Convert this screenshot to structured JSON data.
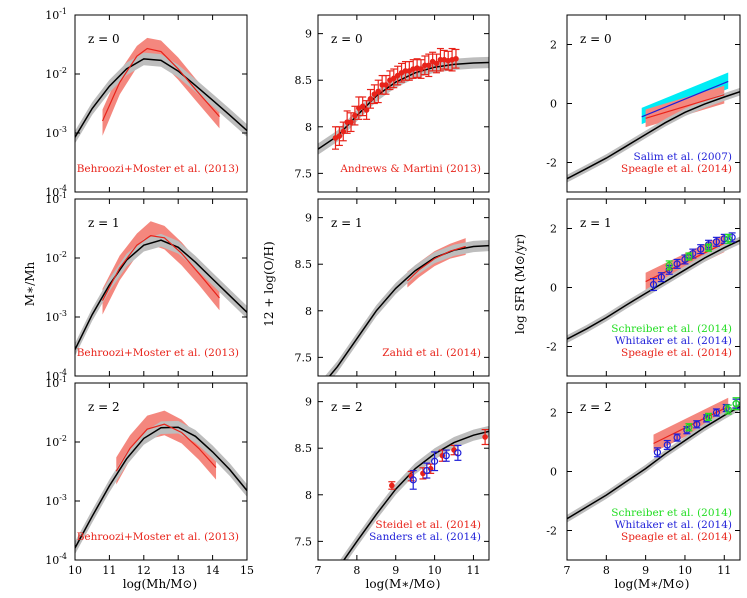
{
  "figure": {
    "columns": [
      {
        "id": "smhm",
        "ylabel": "M∗/Mh",
        "xlabel": "log(Mh/M⊙)",
        "xlim": [
          10,
          15
        ],
        "xticks": [
          10,
          11,
          12,
          13,
          14,
          15
        ],
        "ylog": true,
        "ylim": [
          -4,
          -1
        ],
        "yticks": [
          -4,
          -3,
          -2,
          -1
        ]
      },
      {
        "id": "mzr",
        "ylabel": "12 + log(O/H)",
        "xlabel": "log(M∗/M⊙)",
        "xlim": [
          7,
          11.4
        ],
        "xticks": [
          7,
          8,
          9,
          10,
          11
        ],
        "ylog": false,
        "ylim": [
          7.3,
          9.2
        ],
        "yticks": [
          7.5,
          8.0,
          8.5,
          9.0
        ]
      },
      {
        "id": "sfms",
        "ylabel": "log SFR (M⊙/yr)",
        "xlabel": "log(M∗/M⊙)",
        "xlim": [
          7,
          11.4
        ],
        "xticks": [
          7,
          8,
          9,
          10,
          11
        ],
        "ylog": false,
        "ylim": [
          -3.0,
          3.0
        ],
        "yticks": [
          -2,
          0,
          2
        ]
      }
    ]
  },
  "colors": {
    "red": "#e8231a",
    "red_band": "#f4877e",
    "blue": "#1f1fd8",
    "green": "#22dd22",
    "cyan": "#00ecf5",
    "model": "#000000",
    "model_band": "#bdbdbd"
  },
  "chart_data": [
    {
      "type": "line",
      "panel": "smhm-z0",
      "redshift_label": "z = 0",
      "model": {
        "x": [
          10,
          10.5,
          11,
          11.5,
          12,
          12.5,
          13,
          13.5,
          14,
          14.5,
          15
        ],
        "y": [
          0.00085,
          0.0026,
          0.0062,
          0.0122,
          0.018,
          0.017,
          0.0112,
          0.0064,
          0.0036,
          0.002,
          0.0011
        ]
      },
      "observation": {
        "name": "Behroozi+Moster et al. (2013)",
        "x": [
          10.8,
          11.3,
          11.8,
          12.1,
          12.5,
          13,
          13.5,
          14.2
        ],
        "y": [
          0.0016,
          0.0072,
          0.02,
          0.027,
          0.024,
          0.0122,
          0.0055,
          0.0019
        ],
        "lo": [
          0.0009,
          0.0045,
          0.013,
          0.019,
          0.016,
          0.008,
          0.0036,
          0.0012
        ],
        "hi": [
          0.0025,
          0.011,
          0.03,
          0.041,
          0.037,
          0.019,
          0.0084,
          0.003
        ]
      },
      "legend": [
        "Behroozi+Moster et al. (2013)"
      ]
    },
    {
      "type": "line",
      "panel": "smhm-z1",
      "redshift_label": "z = 1",
      "model": {
        "x": [
          10,
          10.5,
          11,
          11.5,
          12,
          12.5,
          13,
          13.5,
          14,
          14.5,
          15
        ],
        "y": [
          0.00028,
          0.0011,
          0.0035,
          0.0092,
          0.0165,
          0.02,
          0.0152,
          0.0085,
          0.0044,
          0.0023,
          0.0012
        ]
      },
      "observation": {
        "name": "Behroozi+Moster et al. (2013)",
        "x": [
          10.8,
          11.3,
          11.8,
          12.2,
          12.6,
          13.1,
          13.6,
          14.2
        ],
        "y": [
          0.0019,
          0.0068,
          0.0165,
          0.024,
          0.022,
          0.012,
          0.0055,
          0.0021
        ],
        "lo": [
          0.0011,
          0.0042,
          0.011,
          0.017,
          0.014,
          0.0075,
          0.0035,
          0.0013
        ],
        "hi": [
          0.003,
          0.011,
          0.026,
          0.042,
          0.035,
          0.0185,
          0.0085,
          0.0032
        ]
      },
      "legend": [
        "Behroozi+Moster et al. (2013)"
      ]
    },
    {
      "type": "line",
      "panel": "smhm-z2",
      "redshift_label": "z = 2",
      "model": {
        "x": [
          10,
          10.5,
          11,
          11.5,
          12,
          12.5,
          13,
          13.5,
          14,
          14.5,
          15
        ],
        "y": [
          0.00016,
          0.00055,
          0.0018,
          0.0052,
          0.0115,
          0.0175,
          0.0178,
          0.0125,
          0.0068,
          0.0034,
          0.0015
        ]
      },
      "observation": {
        "name": "Behroozi+Moster et al. (2013)",
        "x": [
          11.2,
          11.6,
          12.1,
          12.6,
          13.1,
          13.6,
          14.1
        ],
        "y": [
          0.0032,
          0.0078,
          0.0165,
          0.02,
          0.0145,
          0.0078,
          0.0037
        ],
        "lo": [
          0.0019,
          0.005,
          0.011,
          0.013,
          0.0095,
          0.005,
          0.0023
        ],
        "hi": [
          0.0055,
          0.013,
          0.028,
          0.034,
          0.024,
          0.0125,
          0.006
        ]
      },
      "legend": [
        "Behroozi+Moster et al. (2013)"
      ]
    },
    {
      "type": "line",
      "panel": "mzr-z0",
      "redshift_label": "z = 0",
      "model": {
        "x": [
          7,
          7.5,
          8,
          8.5,
          9,
          9.5,
          10,
          10.5,
          11,
          11.4
        ],
        "y": [
          7.76,
          7.9,
          8.12,
          8.33,
          8.48,
          8.58,
          8.64,
          8.67,
          8.685,
          8.69
        ]
      },
      "points": {
        "name": "Andrews & Martini (2013)",
        "x": [
          7.45,
          7.55,
          7.65,
          7.75,
          7.85,
          7.95,
          8.05,
          8.15,
          8.25,
          8.35,
          8.45,
          8.55,
          8.65,
          8.75,
          8.85,
          8.95,
          9.05,
          9.15,
          9.25,
          9.35,
          9.45,
          9.55,
          9.65,
          9.75,
          9.85,
          9.95,
          10.05,
          10.15,
          10.25,
          10.35,
          10.45,
          10.55
        ],
        "y": [
          7.88,
          7.9,
          7.95,
          8.05,
          8.05,
          8.12,
          8.2,
          8.22,
          8.18,
          8.3,
          8.35,
          8.38,
          8.45,
          8.45,
          8.5,
          8.52,
          8.55,
          8.58,
          8.6,
          8.6,
          8.62,
          8.63,
          8.62,
          8.66,
          8.66,
          8.7,
          8.68,
          8.72,
          8.72,
          8.71,
          8.72,
          8.73
        ],
        "err": [
          0.12,
          0.1,
          0.1,
          0.12,
          0.1,
          0.1,
          0.12,
          0.1,
          0.1,
          0.1,
          0.1,
          0.12,
          0.1,
          0.1,
          0.1,
          0.1,
          0.1,
          0.1,
          0.1,
          0.1,
          0.1,
          0.1,
          0.1,
          0.1,
          0.12,
          0.1,
          0.1,
          0.12,
          0.1,
          0.1,
          0.12,
          0.1
        ]
      },
      "legend": [
        "Andrews & Martini (2013)"
      ]
    },
    {
      "type": "line",
      "panel": "mzr-z1",
      "redshift_label": "z = 1",
      "model": {
        "x": [
          7,
          7.5,
          8,
          8.5,
          9,
          9.5,
          10,
          10.5,
          11,
          11.4
        ],
        "y": [
          7.15,
          7.4,
          7.7,
          8.0,
          8.24,
          8.43,
          8.57,
          8.65,
          8.69,
          8.7
        ]
      },
      "observation": {
        "name": "Zahid et al. (2014)",
        "x": [
          9.3,
          9.6,
          10,
          10.4,
          10.8
        ],
        "y": [
          8.32,
          8.44,
          8.56,
          8.64,
          8.69
        ],
        "lo": [
          8.25,
          8.36,
          8.48,
          8.56,
          8.6
        ],
        "hi": [
          8.42,
          8.52,
          8.64,
          8.72,
          8.78
        ]
      },
      "legend": [
        "Zahid et al. (2014)"
      ]
    },
    {
      "type": "line",
      "panel": "mzr-z2",
      "redshift_label": "z = 2",
      "model": {
        "x": [
          7.5,
          8,
          8.5,
          9,
          9.5,
          10,
          10.5,
          11,
          11.4
        ],
        "y": [
          7.2,
          7.5,
          7.79,
          8.06,
          8.28,
          8.44,
          8.56,
          8.64,
          8.68
        ]
      },
      "points": {
        "name": "Steidel et al. (2014)",
        "x": [
          8.9,
          9.4,
          9.7,
          9.9,
          10.2,
          10.5,
          11.3
        ],
        "y": [
          8.1,
          8.2,
          8.23,
          8.28,
          8.42,
          8.48,
          8.62
        ],
        "err": [
          0.04,
          0.05,
          0.06,
          0.05,
          0.06,
          0.05,
          0.08
        ]
      },
      "points2": {
        "name": "Sanders et al. (2014)",
        "x": [
          9.45,
          9.8,
          10.0,
          10.3,
          10.6
        ],
        "y": [
          8.16,
          8.26,
          8.36,
          8.42,
          8.45
        ],
        "err": [
          0.1,
          0.08,
          0.1,
          0.06,
          0.08
        ]
      },
      "legend": [
        "Steidel et al. (2014)",
        "Sanders et al. (2014)"
      ]
    },
    {
      "type": "line",
      "panel": "sfms-z0",
      "redshift_label": "z = 0",
      "model": {
        "x": [
          7,
          7.5,
          8,
          8.5,
          9,
          9.5,
          10,
          10.5,
          11,
          11.4
        ],
        "y": [
          -2.55,
          -2.2,
          -1.85,
          -1.45,
          -1.05,
          -0.65,
          -0.3,
          -0.02,
          0.22,
          0.4
        ]
      },
      "observation": {
        "name": "Speagle et al. (2014)",
        "x": [
          9,
          11
        ],
        "y": [
          -0.5,
          0.3
        ],
        "lo": [
          -0.8,
          0.0
        ],
        "hi": [
          -0.2,
          0.6
        ]
      },
      "observation2": {
        "name": "Salim et al. (2007)",
        "x": [
          8.9,
          11.1
        ],
        "y": [
          -0.45,
          0.75
        ],
        "lo": [
          -0.7,
          0.5
        ],
        "hi": [
          -0.15,
          1.05
        ]
      },
      "legend": [
        "Salim et al. (2007)",
        "Speagle et al. (2014)"
      ]
    },
    {
      "type": "line",
      "panel": "sfms-z1",
      "redshift_label": "z = 1",
      "model": {
        "x": [
          7,
          7.5,
          8,
          8.5,
          9,
          9.5,
          10,
          10.5,
          11,
          11.4
        ],
        "y": [
          -1.75,
          -1.4,
          -1.02,
          -0.6,
          -0.2,
          0.2,
          0.6,
          1.0,
          1.35,
          1.6
        ]
      },
      "observation": {
        "name": "Speagle et al. (2014)",
        "x": [
          9,
          11
        ],
        "y": [
          0.2,
          1.5
        ],
        "lo": [
          -0.1,
          1.2
        ],
        "hi": [
          0.5,
          1.8
        ]
      },
      "points": {
        "name": "Whitaker et al. (2014)",
        "x": [
          9.2,
          9.4,
          9.6,
          9.8,
          10.0,
          10.2,
          10.4,
          10.6,
          10.8,
          11.0,
          11.2
        ],
        "y": [
          0.1,
          0.35,
          0.6,
          0.8,
          0.95,
          1.15,
          1.3,
          1.45,
          1.55,
          1.65,
          1.7
        ],
        "err": [
          0.2,
          0.15,
          0.15,
          0.15,
          0.15,
          0.15,
          0.15,
          0.15,
          0.15,
          0.15,
          0.15
        ]
      },
      "points2": {
        "name": "Schreiber et al. (2014)",
        "x": [
          9.6,
          10.1,
          10.6,
          11.1
        ],
        "y": [
          0.75,
          1.05,
          1.35,
          1.65
        ],
        "err": [
          0.15,
          0.12,
          0.12,
          0.15
        ]
      },
      "legend": [
        "Schreiber et al. (2014)",
        "Whitaker et al. (2014)",
        "Speagle et al. (2014)"
      ]
    },
    {
      "type": "line",
      "panel": "sfms-z2",
      "redshift_label": "z = 2",
      "model": {
        "x": [
          7,
          7.5,
          8,
          8.5,
          9,
          9.5,
          10,
          10.5,
          11,
          11.4
        ],
        "y": [
          -1.6,
          -1.2,
          -0.8,
          -0.35,
          0.1,
          0.6,
          1.05,
          1.5,
          1.9,
          2.2
        ]
      },
      "observation": {
        "name": "Speagle et al. (2014)",
        "x": [
          9.2,
          11.1
        ],
        "y": [
          0.95,
          2.2
        ],
        "lo": [
          0.65,
          1.9
        ],
        "hi": [
          1.25,
          2.5
        ]
      },
      "points": {
        "name": "Whitaker et al. (2014)",
        "x": [
          9.3,
          9.55,
          9.8,
          10.05,
          10.3,
          10.55,
          10.8,
          11.05,
          11.3
        ],
        "y": [
          0.65,
          0.9,
          1.15,
          1.4,
          1.6,
          1.8,
          2.0,
          2.15,
          2.3
        ],
        "err": [
          0.15,
          0.15,
          0.12,
          0.12,
          0.12,
          0.12,
          0.12,
          0.12,
          0.15
        ]
      },
      "points2": {
        "name": "Schreiber et al. (2014)",
        "x": [
          10.1,
          10.6,
          11.1,
          11.3
        ],
        "y": [
          1.5,
          1.85,
          2.1,
          2.3
        ],
        "err": [
          0.12,
          0.12,
          0.15,
          0.2
        ]
      },
      "legend": [
        "Schreiber et al. (2014)",
        "Whitaker et al. (2014)",
        "Speagle et al. (2014)"
      ]
    }
  ]
}
